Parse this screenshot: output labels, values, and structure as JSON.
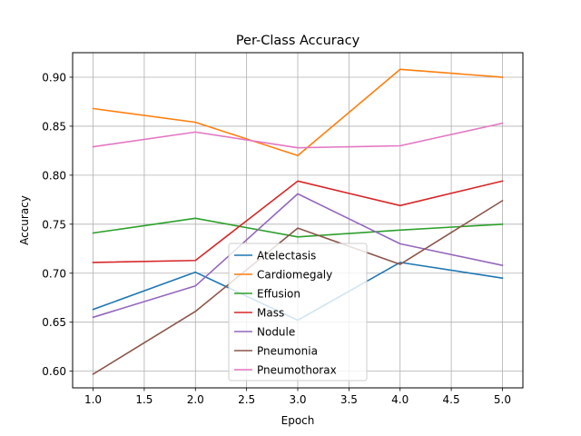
{
  "chart_data": {
    "type": "line",
    "title": "Per-Class Accuracy",
    "xlabel": "Epoch",
    "ylabel": "Accuracy",
    "x": [
      1,
      2,
      3,
      4,
      5
    ],
    "xlim": [
      0.8,
      5.2
    ],
    "ylim": [
      0.583,
      0.925
    ],
    "xticks": [
      1.0,
      1.5,
      2.0,
      2.5,
      3.0,
      3.5,
      4.0,
      4.5,
      5.0
    ],
    "xtick_labels": [
      "1.0",
      "1.5",
      "2.0",
      "2.5",
      "3.0",
      "3.5",
      "4.0",
      "4.5",
      "5.0"
    ],
    "yticks": [
      0.6,
      0.65,
      0.7,
      0.75,
      0.8,
      0.85,
      0.9
    ],
    "ytick_labels": [
      "0.60",
      "0.65",
      "0.70",
      "0.75",
      "0.80",
      "0.85",
      "0.90"
    ],
    "grid": true,
    "legend_position": "lower-center",
    "series": [
      {
        "name": "Atelectasis",
        "color": "#1f77b4",
        "values": [
          0.663,
          0.701,
          0.652,
          0.711,
          0.695
        ]
      },
      {
        "name": "Cardiomegaly",
        "color": "#ff7f0e",
        "values": [
          0.868,
          0.854,
          0.82,
          0.908,
          0.9
        ]
      },
      {
        "name": "Effusion",
        "color": "#2ca02c",
        "values": [
          0.741,
          0.756,
          0.737,
          0.744,
          0.75
        ]
      },
      {
        "name": "Mass",
        "color": "#d62728",
        "values": [
          0.711,
          0.713,
          0.794,
          0.769,
          0.794
        ]
      },
      {
        "name": "Nodule",
        "color": "#9467bd",
        "values": [
          0.655,
          0.687,
          0.781,
          0.73,
          0.708
        ]
      },
      {
        "name": "Pneumonia",
        "color": "#8c564b",
        "values": [
          0.597,
          0.661,
          0.746,
          0.709,
          0.774
        ]
      },
      {
        "name": "Pneumothorax",
        "color": "#e377c2",
        "values": [
          0.829,
          0.844,
          0.828,
          0.83,
          0.853
        ]
      }
    ]
  }
}
